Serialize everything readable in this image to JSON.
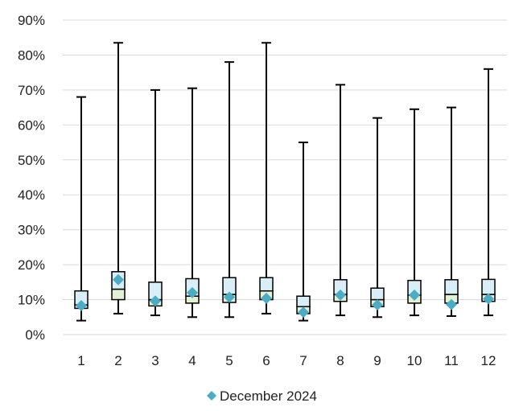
{
  "chart_data": {
    "type": "box",
    "categories": [
      "1",
      "2",
      "3",
      "4",
      "5",
      "6",
      "7",
      "8",
      "9",
      "10",
      "11",
      "12"
    ],
    "y_axis": {
      "min": 0,
      "max": 0.9,
      "ticks": [
        0,
        0.1,
        0.2,
        0.3,
        0.4,
        0.5,
        0.6,
        0.7,
        0.8,
        0.9
      ],
      "tick_labels": [
        "0%",
        "10%",
        "20%",
        "30%",
        "40%",
        "50%",
        "60%",
        "70%",
        "80%",
        "90%"
      ],
      "gridlines": true
    },
    "boxes": [
      {
        "category": "1",
        "min": 0.04,
        "q1": 0.075,
        "median": 0.085,
        "q3": 0.125,
        "max": 0.68
      },
      {
        "category": "2",
        "min": 0.06,
        "q1": 0.1,
        "median": 0.13,
        "q3": 0.18,
        "max": 0.835
      },
      {
        "category": "3",
        "min": 0.055,
        "q1": 0.082,
        "median": 0.1,
        "q3": 0.15,
        "max": 0.7
      },
      {
        "category": "4",
        "min": 0.05,
        "q1": 0.09,
        "median": 0.11,
        "q3": 0.16,
        "max": 0.705
      },
      {
        "category": "5",
        "min": 0.05,
        "q1": 0.092,
        "median": 0.115,
        "q3": 0.163,
        "max": 0.78
      },
      {
        "category": "6",
        "min": 0.06,
        "q1": 0.1,
        "median": 0.125,
        "q3": 0.163,
        "max": 0.835
      },
      {
        "category": "7",
        "min": 0.04,
        "q1": 0.06,
        "median": 0.08,
        "q3": 0.11,
        "max": 0.55
      },
      {
        "category": "8",
        "min": 0.055,
        "q1": 0.095,
        "median": 0.115,
        "q3": 0.157,
        "max": 0.715
      },
      {
        "category": "9",
        "min": 0.05,
        "q1": 0.08,
        "median": 0.1,
        "q3": 0.133,
        "max": 0.62
      },
      {
        "category": "10",
        "min": 0.055,
        "q1": 0.09,
        "median": 0.113,
        "q3": 0.155,
        "max": 0.645
      },
      {
        "category": "11",
        "min": 0.053,
        "q1": 0.09,
        "median": 0.115,
        "q3": 0.157,
        "max": 0.65
      },
      {
        "category": "12",
        "min": 0.055,
        "q1": 0.095,
        "median": 0.115,
        "q3": 0.158,
        "max": 0.76
      }
    ],
    "series": [
      {
        "name": "December 2024",
        "type": "scatter",
        "marker": "diamond",
        "color": "#4bacc6",
        "values": [
          0.083,
          0.157,
          0.096,
          0.12,
          0.107,
          0.104,
          0.064,
          0.113,
          0.085,
          0.113,
          0.086,
          0.102
        ]
      }
    ],
    "colors": {
      "box_upper_fill": "#daeef8",
      "box_lower_fill": "#e3f1d4",
      "box_stroke": "#000000",
      "grid": "#d9d9d9",
      "marker": "#4bacc6"
    },
    "legend": {
      "position": "bottom",
      "label": "December 2024"
    }
  }
}
